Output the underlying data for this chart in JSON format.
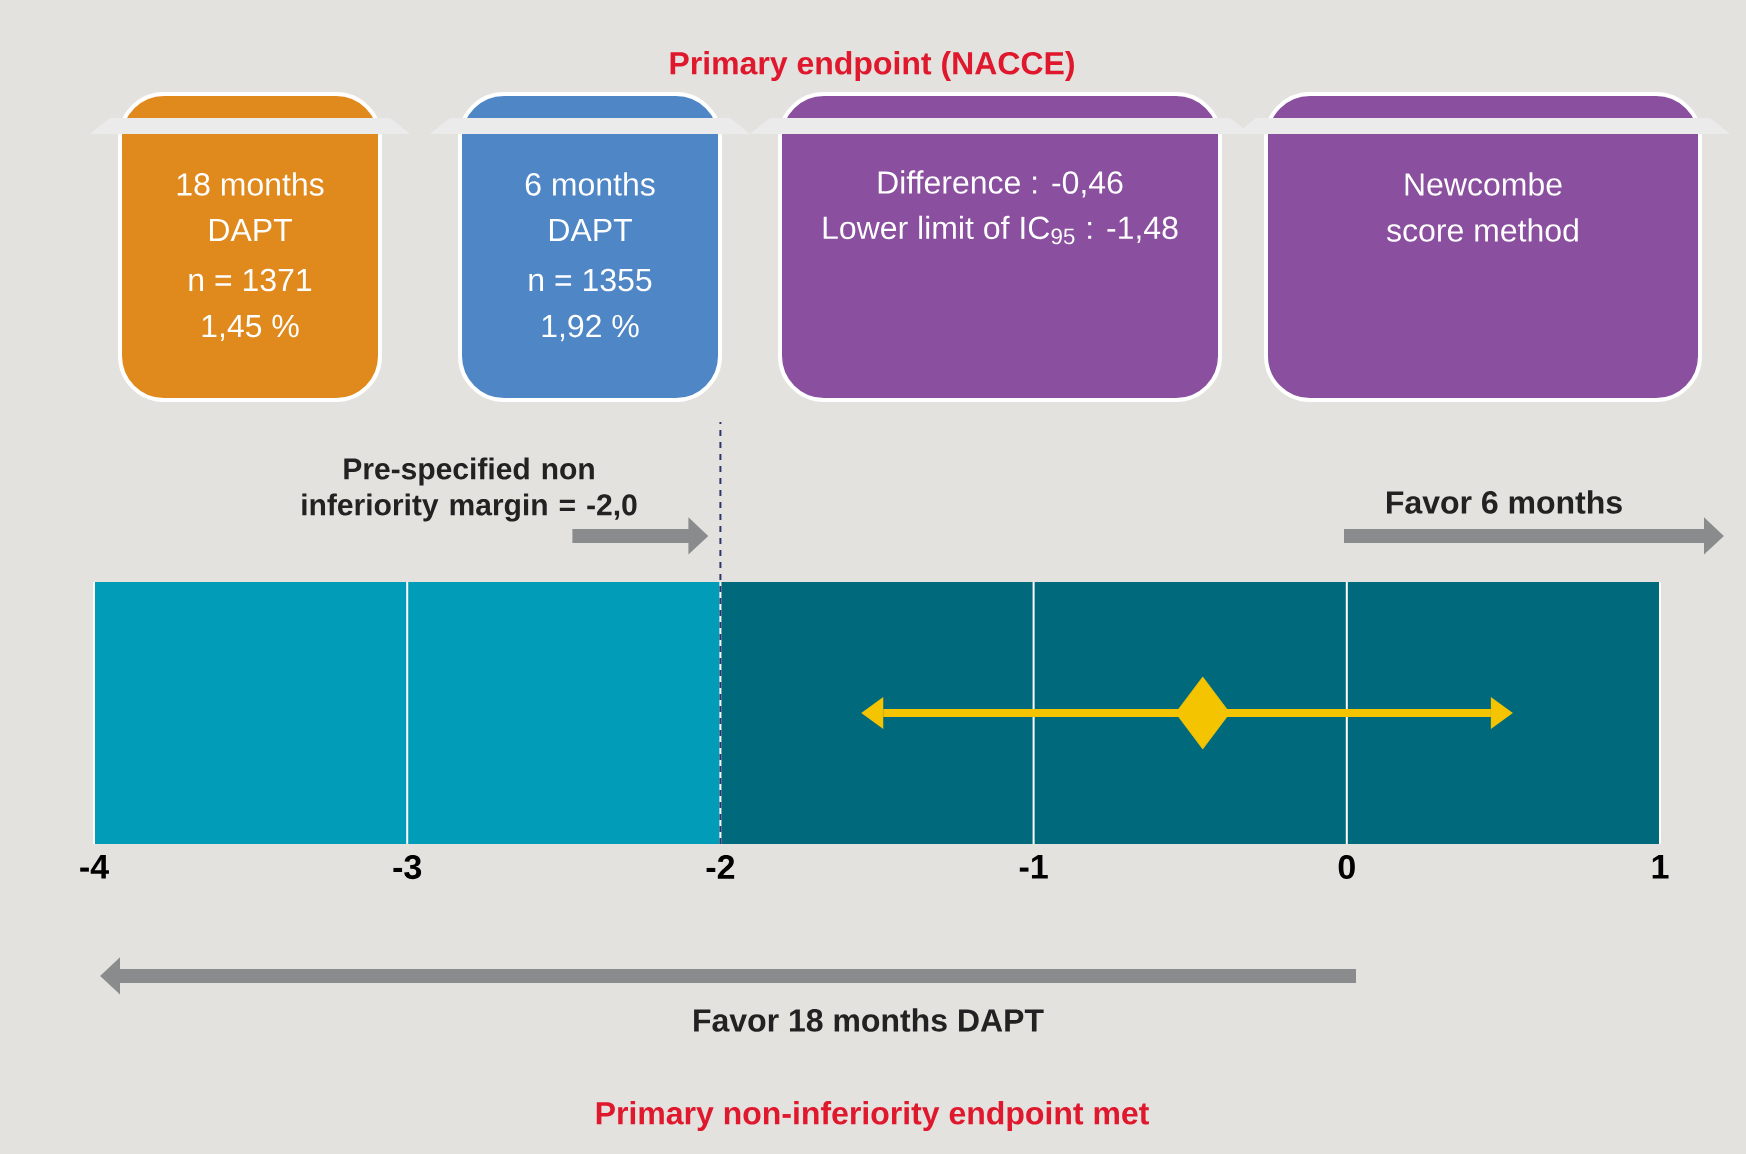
{
  "chart_data": {
    "type": "scatter",
    "orientation": "horizontal",
    "title": "Primary endpoint (NACCE)",
    "categories": [
      null
    ],
    "values": [
      -0.46
    ],
    "errors": [
      [
        -1.48,
        0.46
      ]
    ],
    "color": "#f5c400",
    "marker": "diamond",
    "xlim": [
      -4,
      1
    ],
    "xticks": [
      -4,
      -3,
      -2,
      -1,
      0,
      1
    ],
    "grid": "x",
    "tick_labels": "x",
    "bands": [
      {
        "axis": "x",
        "from": -4,
        "to": -2,
        "color": "#009cb8"
      },
      {
        "axis": "x",
        "from": -2,
        "to": 1,
        "color": "#006a7c"
      }
    ],
    "ref_lines": [
      {
        "axis": "x",
        "value": -2,
        "label": "Pre-specified non inferiority margin = -2,0",
        "line_style": "dashed",
        "color": "#2e3470"
      }
    ],
    "annotations": [
      "18 months",
      "DAPT",
      "n = 1371",
      "1,45 %",
      "6 months",
      "DAPT",
      "n = 1355",
      "1,92 %",
      "Difference : -0,46",
      "Lower limit of IC$_{95}$ : -1,48",
      "Newcombe",
      "score method",
      "Favor 6 months",
      "Favor 18 months DAPT",
      "Primary non-inferiority endpoint met"
    ]
  }
}
